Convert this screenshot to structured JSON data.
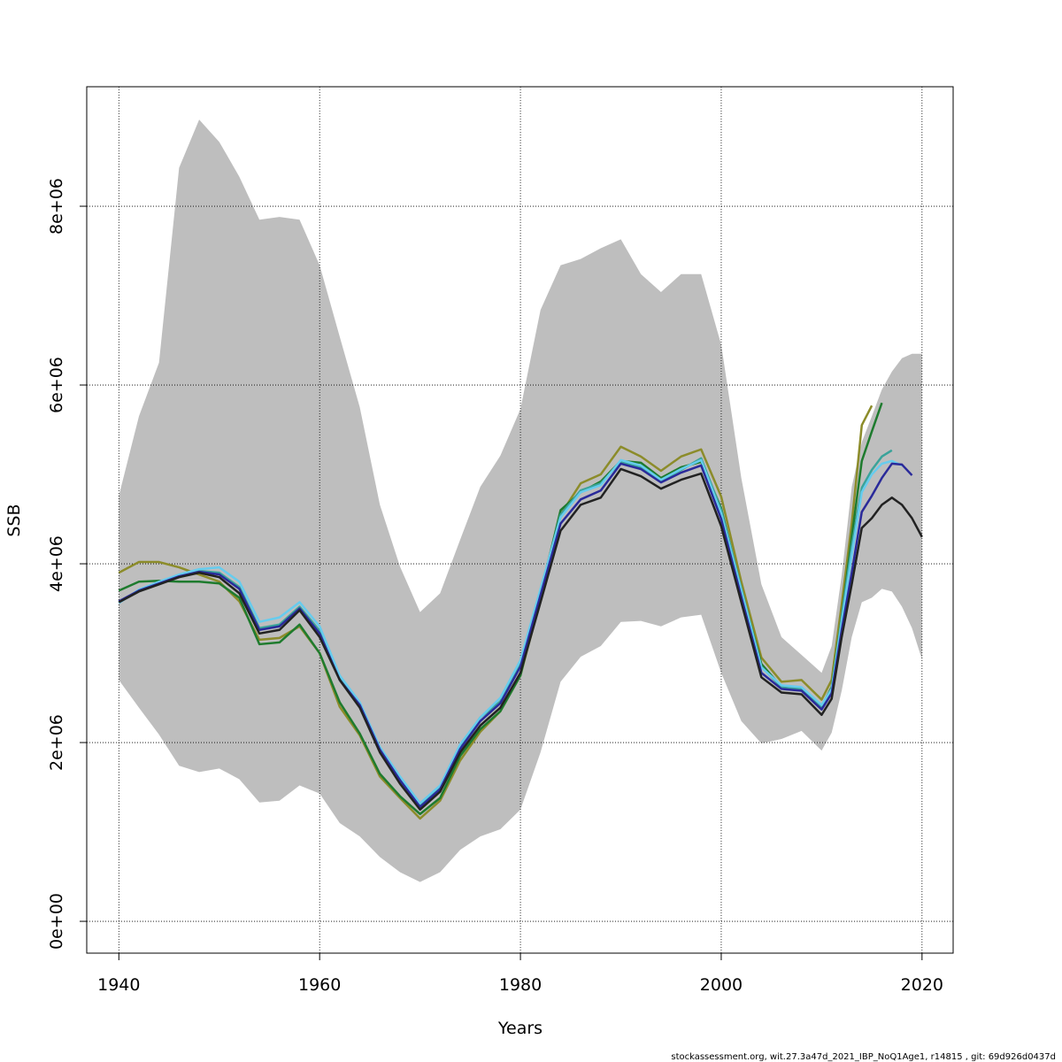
{
  "chart_data": {
    "type": "line",
    "xlabel": "Years",
    "ylabel": "SSB",
    "note": "stockassessment.org, wit.27.3a47d_2021_IBP_NoQ1Age1, r14815 , git: 69d926d0437d",
    "xlim": [
      1936.8,
      2023.1
    ],
    "ylim": [
      -356000,
      9337000
    ],
    "xticks": [
      1940,
      1960,
      1980,
      2000,
      2020
    ],
    "yticks": [
      {
        "value": 0,
        "label": "0e+00"
      },
      {
        "value": 2000000,
        "label": "2e+06"
      },
      {
        "value": 4000000,
        "label": "4e+06"
      },
      {
        "value": 6000000,
        "label": "6e+06"
      },
      {
        "value": 8000000,
        "label": "8e+06"
      }
    ],
    "grid": true,
    "x": [
      1940,
      1942,
      1944,
      1946,
      1948,
      1950,
      1952,
      1954,
      1956,
      1958,
      1960,
      1962,
      1964,
      1966,
      1968,
      1970,
      1972,
      1974,
      1976,
      1978,
      1980,
      1982,
      1984,
      1986,
      1988,
      1990,
      1992,
      1994,
      1996,
      1998,
      2000,
      2002,
      2004,
      2006,
      2008,
      2010,
      2011,
      2012,
      2013,
      2014,
      2015,
      2016,
      2017,
      2018,
      2019,
      2020
    ],
    "band": {
      "color": "#bebebe",
      "upper": [
        4760000.0,
        5650000.0,
        6250000.0,
        8430000.0,
        8970000.0,
        8720000.0,
        8330000.0,
        7850000.0,
        7880000.0,
        7850000.0,
        7340000.0,
        6540000.0,
        5750000.0,
        4660000.0,
        3970000.0,
        3460000.0,
        3670000.0,
        4270000.0,
        4860000.0,
        5210000.0,
        5730000.0,
        6840000.0,
        7340000.0,
        7410000.0,
        7530000.0,
        7630000.0,
        7240000.0,
        7040000.0,
        7240000.0,
        7240000.0,
        6450000.0,
        4960000.0,
        3770000.0,
        3180000.0,
        2980000.0,
        2780000.0,
        3080000.0,
        3870000.0,
        4860000.0,
        5360000.0,
        5650000.0,
        5950000.0,
        6150000.0,
        6300000.0,
        6350000.0,
        6350000.0
      ],
      "lower": [
        2700000.0,
        2390000.0,
        2090000.0,
        1740000.0,
        1670000.0,
        1710000.0,
        1590000.0,
        1330000.0,
        1350000.0,
        1520000.0,
        1430000.0,
        1100000.0,
        950000.0,
        720000.0,
        550000.0,
        440000.0,
        550000.0,
        800000.0,
        950000.0,
        1030000.0,
        1250000.0,
        1890000.0,
        2680000.0,
        2960000.0,
        3080000.0,
        3350000.0,
        3360000.0,
        3300000.0,
        3400000.0,
        3430000.0,
        2780000.0,
        2240000.0,
        1990000.0,
        2040000.0,
        2130000.0,
        1910000.0,
        2110000.0,
        2580000.0,
        3180000.0,
        3570000.0,
        3620000.0,
        3720000.0,
        3690000.0,
        3520000.0,
        3280000.0,
        2930000.0
      ]
    },
    "series": [
      {
        "color": "#8c8c2a",
        "values": [
          3900000.0,
          4020000.0,
          4020000.0,
          3960000.0,
          3880000.0,
          3800000.0,
          3580000.0,
          3150000.0,
          3170000.0,
          3300000.0,
          3000000.0,
          2400000.0,
          2080000.0,
          1620000.0,
          1380000.0,
          1150000.0,
          1350000.0,
          1800000.0,
          2120000.0,
          2350000.0,
          2750000.0,
          3600000.0,
          4550000.0,
          4900000.0,
          5000000.0,
          5310000.0,
          5200000.0,
          5040000.0,
          5200000.0,
          5280000.0,
          4750000.0,
          3800000.0,
          2950000.0,
          2680000.0,
          2700000.0,
          2480000.0,
          2700000.0,
          3550000.0,
          4450000.0,
          5550000.0,
          5770000.0,
          null,
          null,
          null,
          null,
          null
        ]
      },
      {
        "color": "#1e7b2e",
        "values": [
          3700000.0,
          3800000.0,
          3810000.0,
          3800000.0,
          3800000.0,
          3780000.0,
          3620000.0,
          3100000.0,
          3120000.0,
          3320000.0,
          3000000.0,
          2450000.0,
          2100000.0,
          1650000.0,
          1400000.0,
          1200000.0,
          1380000.0,
          1850000.0,
          2150000.0,
          2350000.0,
          2750000.0,
          3660000.0,
          4600000.0,
          4800000.0,
          4920000.0,
          5150000.0,
          5130000.0,
          4960000.0,
          5080000.0,
          5140000.0,
          4620000.0,
          3700000.0,
          2880000.0,
          2620000.0,
          2600000.0,
          2400000.0,
          2620000.0,
          3400000.0,
          4300000.0,
          5150000.0,
          5480000.0,
          5800000.0,
          null,
          null,
          null,
          null
        ]
      },
      {
        "color": "#3aa39a",
        "values": [
          3570000.0,
          3700000.0,
          3780000.0,
          3860000.0,
          3920000.0,
          3900000.0,
          3740000.0,
          3280000.0,
          3320000.0,
          3520000.0,
          3250000.0,
          2720000.0,
          2430000.0,
          1930000.0,
          1600000.0,
          1300000.0,
          1500000.0,
          1960000.0,
          2280000.0,
          2460000.0,
          2880000.0,
          3700000.0,
          4550000.0,
          4820000.0,
          4900000.0,
          5140000.0,
          5080000.0,
          4930000.0,
          5050000.0,
          5180000.0,
          4600000.0,
          3720000.0,
          2850000.0,
          2620000.0,
          2600000.0,
          2400000.0,
          2580000.0,
          3400000.0,
          4200000.0,
          4850000.0,
          5050000.0,
          5200000.0,
          5270000.0,
          null,
          null,
          null
        ]
      },
      {
        "color": "#66ccee",
        "values": [
          3560000.0,
          3710000.0,
          3800000.0,
          3880000.0,
          3940000.0,
          3960000.0,
          3800000.0,
          3350000.0,
          3400000.0,
          3570000.0,
          3300000.0,
          2750000.0,
          2450000.0,
          1950000.0,
          1620000.0,
          1320000.0,
          1520000.0,
          1980000.0,
          2280000.0,
          2500000.0,
          2920000.0,
          3720000.0,
          4520000.0,
          4800000.0,
          4880000.0,
          5160000.0,
          5100000.0,
          4940000.0,
          5060000.0,
          5160000.0,
          4560000.0,
          3700000.0,
          2840000.0,
          2640000.0,
          2620000.0,
          2420000.0,
          2600000.0,
          3350000.0,
          4100000.0,
          4800000.0,
          5000000.0,
          5120000.0,
          5150000.0,
          5100000.0,
          null,
          null
        ]
      },
      {
        "color": "#2a2a9a",
        "values": [
          3580000.0,
          3700000.0,
          3780000.0,
          3860000.0,
          3910000.0,
          3880000.0,
          3720000.0,
          3260000.0,
          3300000.0,
          3500000.0,
          3220000.0,
          2700000.0,
          2420000.0,
          1920000.0,
          1580000.0,
          1280000.0,
          1480000.0,
          1930000.0,
          2240000.0,
          2440000.0,
          2850000.0,
          3650000.0,
          4450000.0,
          4720000.0,
          4820000.0,
          5120000.0,
          5060000.0,
          4910000.0,
          5020000.0,
          5100000.0,
          4500000.0,
          3630000.0,
          2780000.0,
          2600000.0,
          2580000.0,
          2370000.0,
          2550000.0,
          3260000.0,
          3900000.0,
          4580000.0,
          4760000.0,
          4960000.0,
          5120000.0,
          5110000.0,
          4990000.0,
          null
        ]
      },
      {
        "color": "#222222",
        "values": [
          3570000.0,
          3690000.0,
          3770000.0,
          3850000.0,
          3900000.0,
          3850000.0,
          3670000.0,
          3220000.0,
          3260000.0,
          3480000.0,
          3180000.0,
          2700000.0,
          2390000.0,
          1890000.0,
          1540000.0,
          1250000.0,
          1450000.0,
          1890000.0,
          2190000.0,
          2390000.0,
          2780000.0,
          3570000.0,
          4370000.0,
          4660000.0,
          4740000.0,
          5060000.0,
          4980000.0,
          4840000.0,
          4940000.0,
          5010000.0,
          4420000.0,
          3570000.0,
          2730000.0,
          2560000.0,
          2540000.0,
          2310000.0,
          2490000.0,
          3180000.0,
          3770000.0,
          4400000.0,
          4510000.0,
          4660000.0,
          4740000.0,
          4660000.0,
          4510000.0,
          4300000.0
        ]
      }
    ]
  }
}
